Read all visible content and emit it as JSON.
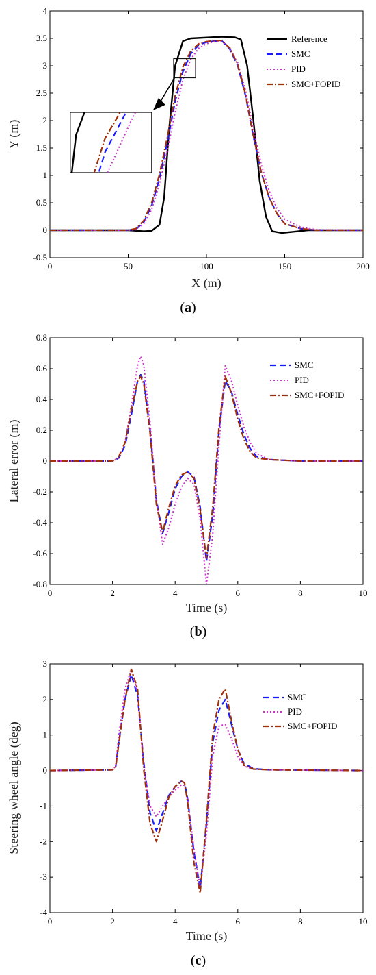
{
  "panels": {
    "a": {
      "label_open": "(",
      "label_letter": "a",
      "label_close": ")"
    },
    "b": {
      "label_open": "(",
      "label_letter": "b",
      "label_close": ")"
    },
    "c": {
      "label_open": "(",
      "label_letter": "c",
      "label_close": ")"
    }
  },
  "styles": {
    "Reference": {
      "color": "#000000",
      "dash": "",
      "width": 2.4
    },
    "SMC": {
      "color": "#1a1aff",
      "dash": "9 5",
      "width": 2.2
    },
    "PID": {
      "color": "#cc33cc",
      "dash": "2 3",
      "width": 2.0
    },
    "SMC+FOPID": {
      "color": "#a0300a",
      "dash": "9 3 2 3",
      "width": 2.2
    }
  },
  "chart_data": [
    {
      "type": "line",
      "xlabel": "X (m)",
      "ylabel": "Y (m)",
      "xlim": [
        0,
        200
      ],
      "ylim": [
        -0.5,
        4
      ],
      "xticks": [
        0,
        50,
        100,
        150,
        200
      ],
      "yticks": [
        -0.5,
        0,
        0.5,
        1,
        1.5,
        2,
        2.5,
        3,
        3.5,
        4
      ],
      "legend": "top-right",
      "legend_entries": [
        "Reference",
        "SMC",
        "PID",
        "SMC+FOPID"
      ],
      "inset": {
        "source_box": {
          "x": [
            79,
            93
          ],
          "y": [
            2.78,
            3.13
          ]
        },
        "box": {
          "x": [
            13,
            65
          ],
          "y": [
            1.05,
            2.15
          ]
        }
      },
      "series": [
        {
          "name": "Reference",
          "x": [
            0,
            50,
            60,
            65,
            70,
            73,
            76,
            80,
            85,
            90,
            110,
            118,
            122,
            126,
            130,
            134,
            138,
            142,
            148,
            155,
            165,
            200
          ],
          "y": [
            0,
            0,
            -0.02,
            -0.01,
            0.1,
            0.6,
            1.8,
            3.0,
            3.45,
            3.5,
            3.53,
            3.52,
            3.48,
            3.0,
            2.0,
            0.9,
            0.25,
            -0.02,
            -0.05,
            -0.03,
            0,
            0
          ]
        },
        {
          "name": "SMC",
          "x": [
            0,
            50,
            55,
            60,
            65,
            70,
            75,
            80,
            85,
            90,
            95,
            100,
            105,
            110,
            115,
            120,
            125,
            130,
            135,
            140,
            145,
            150,
            160,
            170,
            200
          ],
          "y": [
            0,
            0,
            0.02,
            0.15,
            0.45,
            0.95,
            1.6,
            2.35,
            2.9,
            3.22,
            3.38,
            3.43,
            3.45,
            3.45,
            3.3,
            3.0,
            2.45,
            1.7,
            1.05,
            0.6,
            0.3,
            0.12,
            0.03,
            0,
            0
          ]
        },
        {
          "name": "PID",
          "x": [
            0,
            50,
            55,
            60,
            65,
            70,
            75,
            80,
            85,
            90,
            95,
            100,
            105,
            110,
            115,
            120,
            125,
            130,
            135,
            140,
            145,
            150,
            160,
            170,
            200
          ],
          "y": [
            0,
            0,
            0.01,
            0.12,
            0.38,
            0.85,
            1.45,
            2.15,
            2.75,
            3.12,
            3.32,
            3.4,
            3.44,
            3.44,
            3.32,
            3.05,
            2.55,
            1.85,
            1.2,
            0.72,
            0.4,
            0.2,
            0.06,
            0.01,
            0
          ]
        },
        {
          "name": "SMC+FOPID",
          "x": [
            0,
            50,
            55,
            60,
            65,
            70,
            75,
            80,
            85,
            90,
            95,
            100,
            105,
            110,
            115,
            120,
            125,
            130,
            135,
            140,
            145,
            150,
            160,
            170,
            200
          ],
          "y": [
            0,
            0,
            0.03,
            0.18,
            0.5,
            1.02,
            1.7,
            2.45,
            2.98,
            3.27,
            3.4,
            3.44,
            3.46,
            3.46,
            3.32,
            3.02,
            2.47,
            1.72,
            1.06,
            0.6,
            0.3,
            0.12,
            0.03,
            0,
            0
          ]
        }
      ]
    },
    {
      "type": "line",
      "xlabel": "Time (s)",
      "ylabel": "Lateral error (m)",
      "xlim": [
        0,
        10
      ],
      "ylim": [
        -0.8,
        0.8
      ],
      "xticks": [
        0,
        2,
        4,
        6,
        8,
        10
      ],
      "yticks": [
        -0.8,
        -0.6,
        -0.4,
        -0.2,
        0,
        0.2,
        0.4,
        0.6,
        0.8
      ],
      "legend": "top-right",
      "legend_entries": [
        "SMC",
        "PID",
        "SMC+FOPID"
      ],
      "series": [
        {
          "name": "SMC",
          "x": [
            0,
            2,
            2.2,
            2.4,
            2.6,
            2.8,
            2.9,
            3.0,
            3.2,
            3.4,
            3.6,
            3.8,
            4.0,
            4.2,
            4.4,
            4.6,
            4.8,
            5.0,
            5.2,
            5.4,
            5.6,
            5.8,
            6.0,
            6.2,
            6.4,
            6.6,
            7.0,
            8.0,
            10
          ],
          "y": [
            0,
            0,
            0.02,
            0.1,
            0.3,
            0.52,
            0.56,
            0.52,
            0.2,
            -0.25,
            -0.47,
            -0.33,
            -0.18,
            -0.1,
            -0.07,
            -0.1,
            -0.3,
            -0.65,
            -0.35,
            0.2,
            0.52,
            0.45,
            0.3,
            0.17,
            0.08,
            0.03,
            0.01,
            0,
            0
          ]
        },
        {
          "name": "PID",
          "x": [
            0,
            2,
            2.2,
            2.4,
            2.6,
            2.8,
            2.9,
            3.0,
            3.2,
            3.4,
            3.6,
            3.8,
            4.0,
            4.2,
            4.4,
            4.6,
            4.8,
            5.0,
            5.2,
            5.4,
            5.6,
            5.8,
            6.0,
            6.2,
            6.4,
            6.6,
            7.0,
            8.0,
            10
          ],
          "y": [
            0,
            0,
            0.02,
            0.12,
            0.36,
            0.62,
            0.68,
            0.62,
            0.25,
            -0.25,
            -0.54,
            -0.43,
            -0.28,
            -0.17,
            -0.11,
            -0.15,
            -0.38,
            -0.8,
            -0.48,
            0.1,
            0.62,
            0.52,
            0.36,
            0.22,
            0.12,
            0.05,
            0.01,
            0,
            0
          ]
        },
        {
          "name": "SMC+FOPID",
          "x": [
            0,
            2,
            2.2,
            2.4,
            2.6,
            2.8,
            2.9,
            3.0,
            3.2,
            3.4,
            3.6,
            3.8,
            4.0,
            4.2,
            4.4,
            4.6,
            4.8,
            5.0,
            5.2,
            5.4,
            5.6,
            5.8,
            6.0,
            6.2,
            6.4,
            6.6,
            7.0,
            8.0,
            10
          ],
          "y": [
            0,
            0,
            0.03,
            0.12,
            0.33,
            0.52,
            0.55,
            0.5,
            0.18,
            -0.28,
            -0.46,
            -0.3,
            -0.16,
            -0.09,
            -0.07,
            -0.11,
            -0.32,
            -0.63,
            -0.3,
            0.22,
            0.55,
            0.44,
            0.27,
            0.14,
            0.06,
            0.02,
            0.01,
            0,
            0
          ]
        }
      ]
    },
    {
      "type": "line",
      "xlabel": "Time (s)",
      "ylabel": "Steering wheel angle (deg)",
      "xlim": [
        0,
        10
      ],
      "ylim": [
        -4,
        3
      ],
      "xticks": [
        0,
        2,
        4,
        6,
        8,
        10
      ],
      "yticks": [
        -4,
        -3,
        -2,
        -1,
        0,
        1,
        2,
        3
      ],
      "legend": "top-right",
      "legend_entries": [
        "SMC",
        "PID",
        "SMC+FOPID"
      ],
      "series": [
        {
          "name": "SMC",
          "x": [
            0,
            2,
            2.1,
            2.2,
            2.4,
            2.6,
            2.8,
            3.0,
            3.2,
            3.4,
            3.6,
            3.8,
            4.0,
            4.2,
            4.3,
            4.4,
            4.6,
            4.8,
            5.0,
            5.2,
            5.4,
            5.6,
            5.8,
            6.0,
            6.2,
            6.5,
            7.0,
            10
          ],
          "y": [
            0,
            0.02,
            0.1,
            0.8,
            2.0,
            2.7,
            2.1,
            0.2,
            -1.2,
            -1.7,
            -1.2,
            -0.7,
            -0.45,
            -0.3,
            -0.35,
            -0.8,
            -2.3,
            -3.3,
            -1.5,
            0.8,
            1.7,
            2.0,
            1.3,
            0.6,
            0.2,
            0.05,
            0.02,
            0
          ]
        },
        {
          "name": "PID",
          "x": [
            0,
            2,
            2.1,
            2.2,
            2.4,
            2.6,
            2.8,
            3.0,
            3.2,
            3.4,
            3.6,
            3.8,
            4.0,
            4.2,
            4.3,
            4.4,
            4.6,
            4.8,
            5.0,
            5.2,
            5.4,
            5.6,
            5.8,
            6.0,
            6.2,
            6.5,
            7.0,
            10
          ],
          "y": [
            0,
            0.02,
            0.12,
            1.0,
            2.3,
            2.85,
            2.2,
            0.1,
            -1.0,
            -1.3,
            -1.0,
            -0.75,
            -0.55,
            -0.4,
            -0.42,
            -0.8,
            -2.2,
            -3.3,
            -1.8,
            0.4,
            1.25,
            1.3,
            0.9,
            0.4,
            0.12,
            0.04,
            0.02,
            0
          ]
        },
        {
          "name": "SMC+FOPID",
          "x": [
            0,
            2,
            2.1,
            2.2,
            2.4,
            2.6,
            2.8,
            3.0,
            3.2,
            3.4,
            3.6,
            3.8,
            4.0,
            4.2,
            4.3,
            4.4,
            4.6,
            4.8,
            5.0,
            5.2,
            5.4,
            5.6,
            5.8,
            6.0,
            6.2,
            6.5,
            7.0,
            10
          ],
          "y": [
            0,
            0.02,
            0.1,
            0.75,
            2.0,
            2.85,
            2.3,
            0.0,
            -1.5,
            -2.0,
            -1.4,
            -0.75,
            -0.45,
            -0.3,
            -0.35,
            -0.9,
            -2.6,
            -3.45,
            -1.4,
            1.0,
            2.0,
            2.3,
            1.4,
            0.6,
            0.15,
            0.04,
            0.02,
            0
          ]
        }
      ]
    }
  ]
}
